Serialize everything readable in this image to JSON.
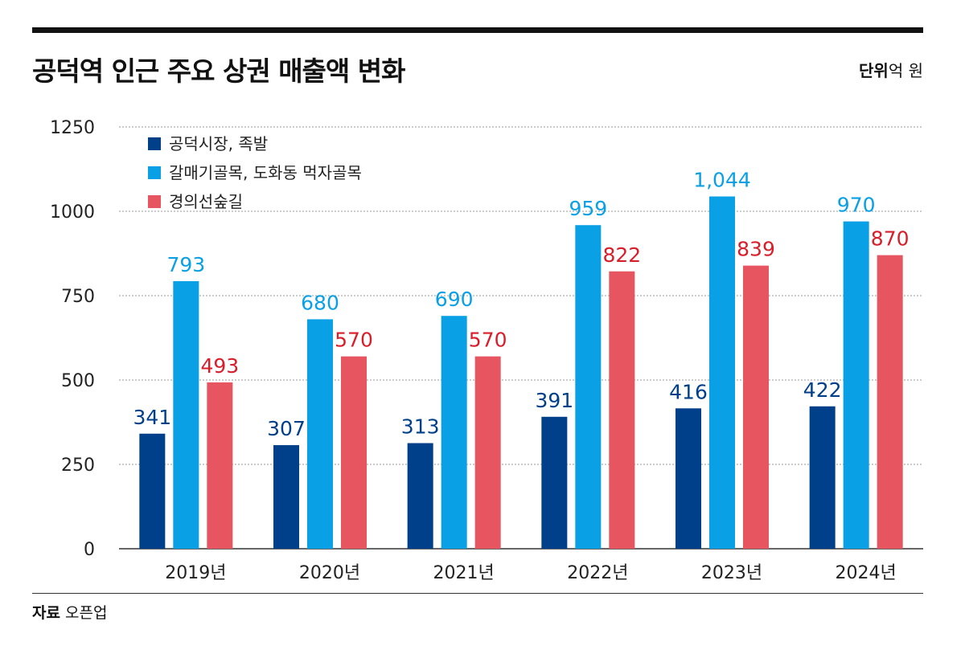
{
  "title": "공덕역 인근 주요 상권 매출액 변화",
  "unit": {
    "label": "단위",
    "value": "억 원"
  },
  "source": {
    "label": "자료",
    "value": "오픈업"
  },
  "colors": {
    "series1": "#003f8a",
    "series2": "#0aa0e6",
    "series3": "#e65560",
    "label1": "#003f8a",
    "label2": "#0aa0e6",
    "label3": "#d81e2a"
  },
  "chart_data": {
    "type": "bar",
    "categories": [
      "2019년",
      "2020년",
      "2021년",
      "2022년",
      "2023년",
      "2024년"
    ],
    "series": [
      {
        "name": "공덕시장, 족발",
        "values": [
          341,
          307,
          313,
          391,
          416,
          422
        ],
        "labels": [
          "341",
          "307",
          "313",
          "391",
          "416",
          "422"
        ]
      },
      {
        "name": "갈매기골목, 도화동 먹자골목",
        "values": [
          793,
          680,
          690,
          959,
          1044,
          970
        ],
        "labels": [
          "793",
          "680",
          "690",
          "959",
          "1,044",
          "970"
        ]
      },
      {
        "name": "경의선숲길",
        "values": [
          493,
          570,
          570,
          822,
          839,
          870
        ],
        "labels": [
          "493",
          "570",
          "570",
          "822",
          "839",
          "870"
        ]
      }
    ],
    "yticks": [
      0,
      250,
      500,
      750,
      1000,
      1250
    ],
    "ylim": [
      0,
      1250
    ],
    "xlabel": "",
    "ylabel": "",
    "legend": "top-left",
    "grid": true
  }
}
